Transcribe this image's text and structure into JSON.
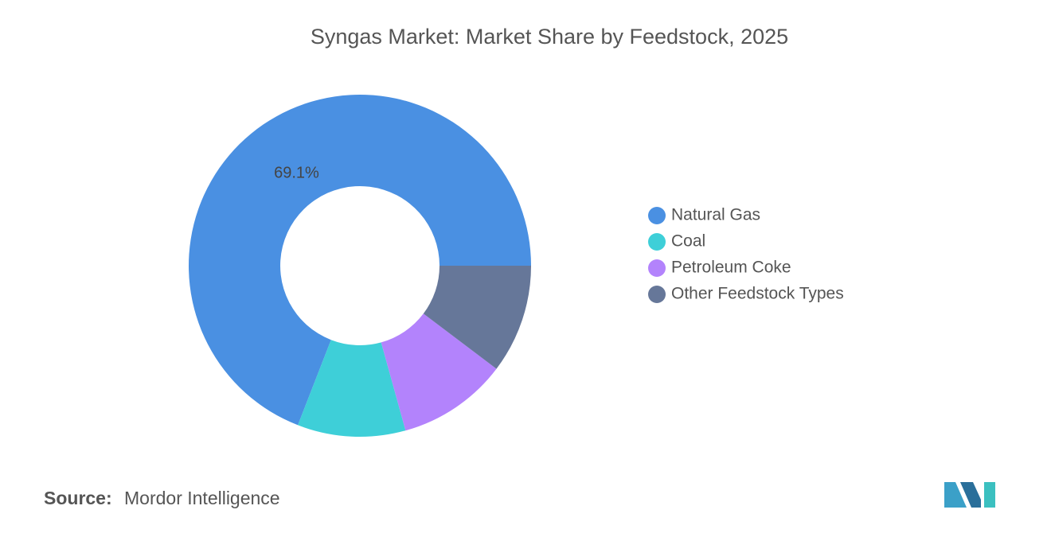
{
  "chart_data": {
    "type": "donut",
    "title": "Syngas Market: Market Share by Feedstock, 2025",
    "categories": [
      "Natural Gas",
      "Coal",
      "Petroleum Coke",
      "Other Feedstock Types"
    ],
    "values": [
      69.1,
      10.2,
      10.4,
      10.3
    ],
    "value_labels": [
      "69.1%",
      null,
      null,
      null
    ],
    "colors": [
      "#4a90e2",
      "#3ecfd8",
      "#b383fc",
      "#667799"
    ],
    "legend": "right"
  },
  "source": {
    "label": "Source:",
    "name": "Mordor Intelligence"
  }
}
